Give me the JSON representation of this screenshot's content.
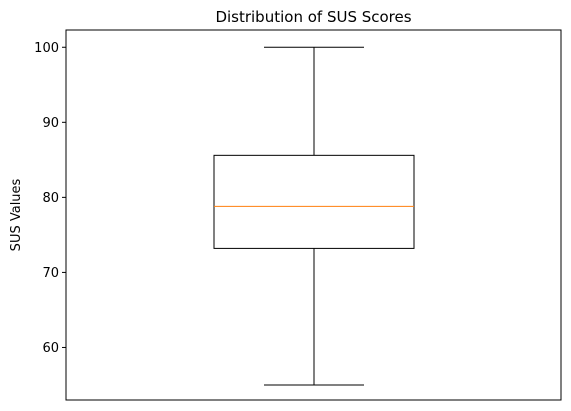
{
  "chart_data": {
    "type": "box",
    "title": "Distribution of SUS Scores",
    "xlabel": "",
    "ylabel": "SUS Values",
    "ylim": [
      53.0,
      102.3
    ],
    "yticks": [
      60,
      70,
      80,
      90,
      100
    ],
    "ytick_labels": [
      "60",
      "70",
      "80",
      "90",
      "100"
    ],
    "grid": false,
    "box": {
      "min": 55.0,
      "q1": 73.2,
      "median": 78.8,
      "q3": 85.6,
      "max": 100.0
    },
    "colors": {
      "box_edge": "#000000",
      "median_line": "#ff7f0e",
      "background": "#ffffff"
    }
  }
}
